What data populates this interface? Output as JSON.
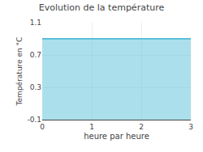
{
  "chart_data": {
    "type": "area",
    "title": "Evolution de la température",
    "x_label": "heure par heure",
    "y_label": "Température en °C",
    "x": [
      0,
      3
    ],
    "values": [
      0.9,
      0.9
    ],
    "color": "#5abfda",
    "xlim": [
      0,
      3
    ],
    "xticks": [
      0,
      1,
      2,
      3
    ],
    "ylim": [
      -0.1,
      1.1
    ],
    "yticks": [
      -0.1,
      0.3,
      0.7,
      1.1
    ],
    "grid": true
  }
}
